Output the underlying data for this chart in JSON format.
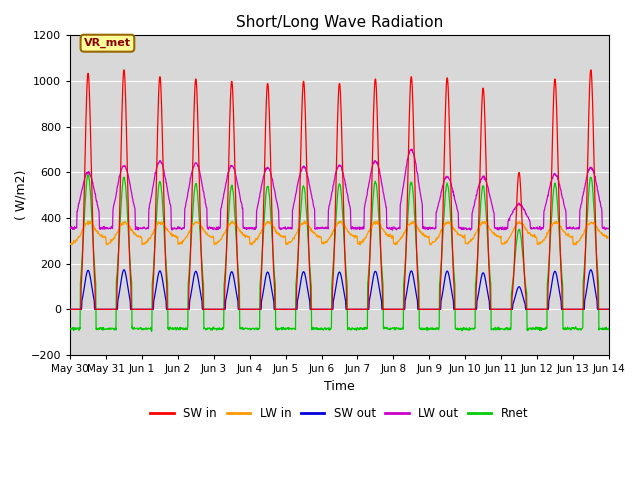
{
  "title": "Short/Long Wave Radiation",
  "xlabel": "Time",
  "ylabel": "( W/m2)",
  "ylim": [
    -200,
    1200
  ],
  "yticks": [
    -200,
    0,
    200,
    400,
    600,
    800,
    1000,
    1200
  ],
  "xlim": [
    0,
    15
  ],
  "xtick_labels": [
    "May 30",
    "May 31",
    "Jun 1",
    "Jun 2",
    "Jun 3",
    "Jun 4",
    "Jun 5",
    "Jun 6",
    "Jun 7",
    "Jun 8",
    "Jun 9",
    "Jun 10",
    "Jun 11",
    "Jun 12",
    "Jun 13",
    "Jun 14"
  ],
  "xtick_positions": [
    0,
    1,
    2,
    3,
    4,
    5,
    6,
    7,
    8,
    9,
    10,
    11,
    12,
    13,
    14,
    15
  ],
  "colors": {
    "SW_in": "#ff0000",
    "LW_in": "#ff9900",
    "SW_out": "#0000dd",
    "LW_out": "#cc00cc",
    "Rnet": "#00cc00"
  },
  "legend_labels": [
    "SW in",
    "LW in",
    "SW out",
    "LW out",
    "Rnet"
  ],
  "annotation_text": "VR_met",
  "annotation_box_color": "#ffff99",
  "annotation_box_edge": "#996600",
  "background_plot": "#d8d8d8",
  "n_days": 15,
  "pts_per_day": 96,
  "SW_in_peaks": [
    1035,
    1050,
    1020,
    1010,
    1000,
    990,
    1000,
    990,
    1010,
    1020,
    1015,
    970,
    600,
    1010,
    1050
  ],
  "grid_color": "#ffffff",
  "grid_linewidth": 0.8
}
